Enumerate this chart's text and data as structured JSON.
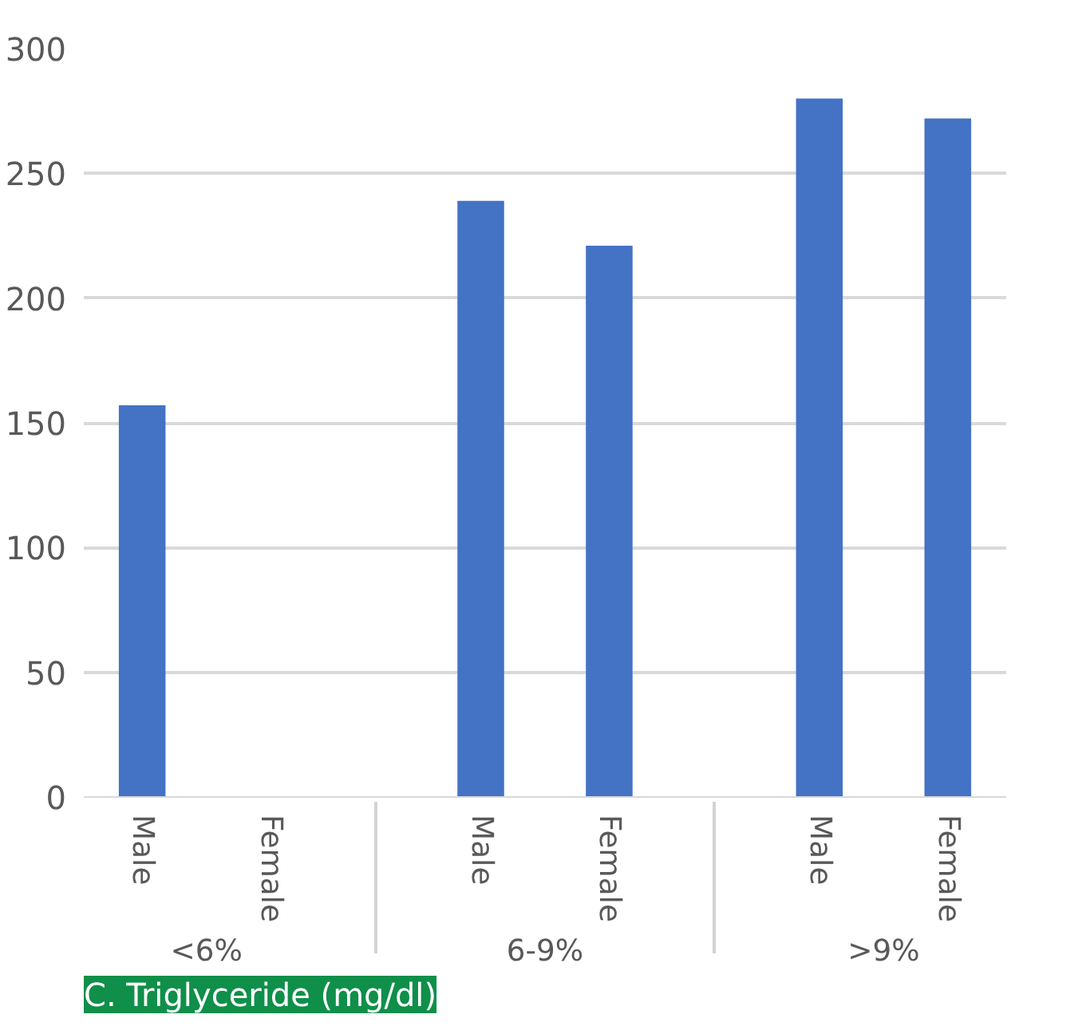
{
  "chart_data": {
    "type": "bar",
    "title": "C. Triglyceride (mg/dl)",
    "categories": [
      "Male",
      "Female",
      "Male",
      "Female",
      "Male",
      "Female"
    ],
    "annotations": [
      "<6%",
      "6-9%",
      ">9%"
    ],
    "values": [
      157,
      null,
      239,
      221,
      280,
      272
    ],
    "color": "#4472c4",
    "ylim": [
      0,
      300
    ],
    "yticks": [
      0,
      50,
      100,
      150,
      200,
      250,
      300
    ],
    "grid": "y"
  }
}
